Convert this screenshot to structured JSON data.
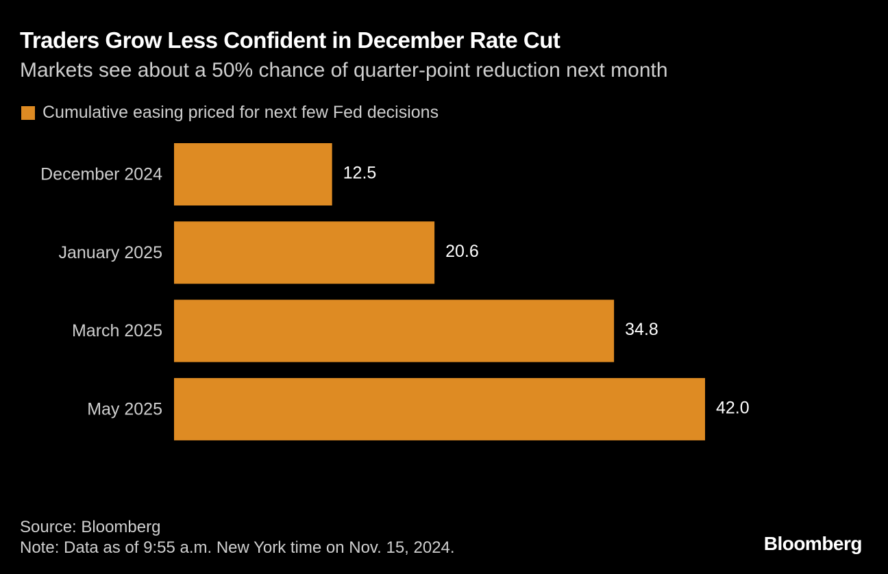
{
  "header": {
    "title": "Traders Grow Less Confident in December Rate Cut",
    "subtitle": "Markets see about a 50% chance of quarter-point reduction next month"
  },
  "legend": {
    "label": "Cumulative easing priced for next few Fed decisions"
  },
  "footer": {
    "source": "Source: Bloomberg",
    "note": "Note: Data as of 9:55 a.m. New York time on Nov. 15, 2024.",
    "brand": "Bloomberg"
  },
  "colors": {
    "background": "#000000",
    "bar": "#de8b23",
    "text": "#ffffff",
    "muted_text": "#cfcfcf"
  },
  "chart_data": {
    "type": "bar",
    "orientation": "horizontal",
    "categories": [
      "December 2024",
      "January 2025",
      "March 2025",
      "May 2025"
    ],
    "series": [
      {
        "name": "Cumulative easing priced for next few Fed decisions",
        "values": [
          12.5,
          20.6,
          34.8,
          42.0
        ]
      }
    ],
    "data_labels": [
      "12.5",
      "20.6",
      "34.8",
      "42.0"
    ],
    "xlim": [
      0,
      42.0
    ],
    "grid": false,
    "legend_position": "top-left"
  }
}
